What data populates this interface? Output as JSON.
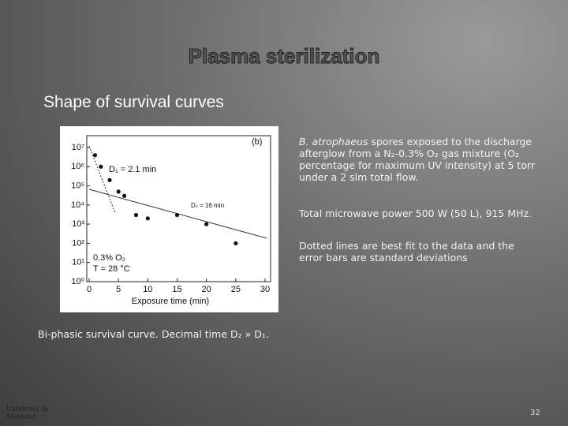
{
  "title": "Plasma sterilization",
  "subtitle": "Shape of survival curves",
  "chart_data": {
    "type": "scatter",
    "panel_label": "(b)",
    "x": [
      1,
      2,
      3.5,
      5,
      6,
      8,
      10,
      15,
      20,
      25
    ],
    "values": [
      4000000,
      1000000,
      200000,
      50000,
      30000,
      3000,
      2000,
      3000,
      1000,
      100
    ],
    "color": "#111111",
    "xlabel": "Exposure time (min)",
    "xlim": [
      0,
      30
    ],
    "xticks": [
      0,
      5,
      10,
      15,
      20,
      25,
      30
    ],
    "ylim": [
      1,
      10000000
    ],
    "log_y": true,
    "yticks": [
      {
        "value": 1,
        "label": "10⁰"
      },
      {
        "value": 10,
        "label": "10¹"
      },
      {
        "value": 100,
        "label": "10²"
      },
      {
        "value": 1000,
        "label": "10³"
      },
      {
        "value": 10000,
        "label": "10⁴"
      },
      {
        "value": 100000,
        "label": "10⁵"
      },
      {
        "value": 1000000,
        "label": "10⁶"
      },
      {
        "value": 10000000,
        "label": "10⁷"
      }
    ],
    "annotations": [
      "D₁ = 2.1 min",
      "D₂ = 16 min",
      "0.3% O₂",
      "T = 28 °C"
    ]
  },
  "description": {
    "species": "B. atrophaeus",
    "text": " spores exposed to the discharge afterglow from a N₂-0.3% O₂ gas mixture (O₂ percentage for maximum UV intensity) at 5 torr under a 2 slm total flow."
  },
  "power": "Total microwave power 500 W (50 L), 915 MHz.",
  "fit_note": "Dotted lines are best fit to the data and the error bars are standard deviations",
  "caption": "Bi-phasic survival curve. Decimal time D₂ » D₁.",
  "logo": "Université de Montréal",
  "page_number": "32"
}
